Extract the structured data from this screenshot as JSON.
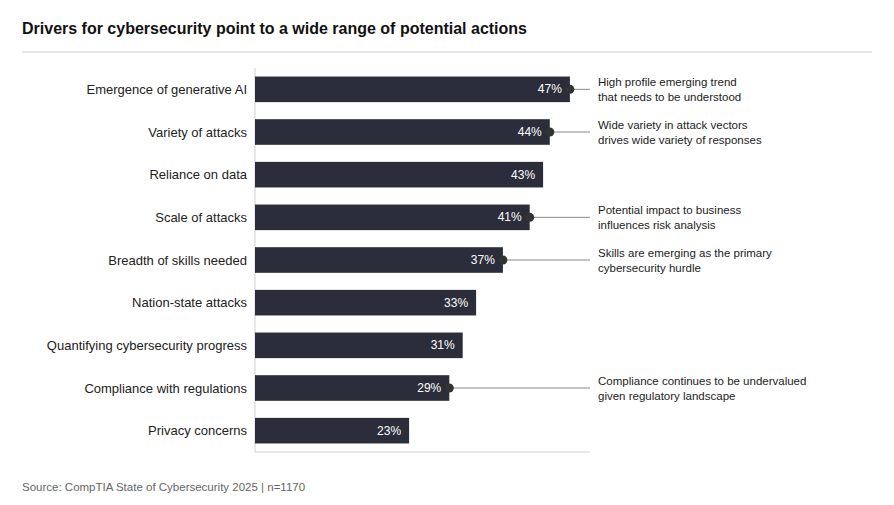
{
  "chart_data": {
    "type": "bar",
    "orientation": "horizontal",
    "title": "Drivers for cybersecurity point to a wide range of potential actions",
    "categories": [
      "Privacy concerns",
      "Compliance with regulations",
      "Quantifying cybersecurity progress",
      "Nation-state attacks",
      "Breadth of skills needed",
      "Scale of attacks",
      "Reliance on data",
      "Variety of attacks",
      "Emergence of generative AI"
    ],
    "values": [
      23,
      29,
      31,
      33,
      37,
      41,
      43,
      44,
      47
    ],
    "value_labels": [
      "23%",
      "29%",
      "31%",
      "33%",
      "37%",
      "41%",
      "43%",
      "44%",
      "47%"
    ],
    "data_labels": true,
    "color": "#2b2d3b",
    "xlim": [
      0,
      50
    ],
    "grid": false,
    "tick_labels": "y",
    "annotations": [
      {
        "text": "High profile emerging trend\nthat needs to be understood",
        "category": "Emergence of generative AI"
      },
      {
        "text": "Wide variety in attack vectors\ndrives wide variety of responses",
        "category": "Variety of attacks"
      },
      {
        "text": "Potential impact to business\ninfluences risk analysis",
        "category": "Scale of attacks"
      },
      {
        "text": "Skills are emerging as the primary\ncybersecurity hurdle",
        "category": "Breadth of skills needed"
      },
      {
        "text": "Compliance continues to be undervalued\ngiven regulatory landscape",
        "category": "Compliance with regulations"
      }
    ],
    "source": "Source: CompTIA State of Cybersecurity 2025 | n=1170"
  }
}
